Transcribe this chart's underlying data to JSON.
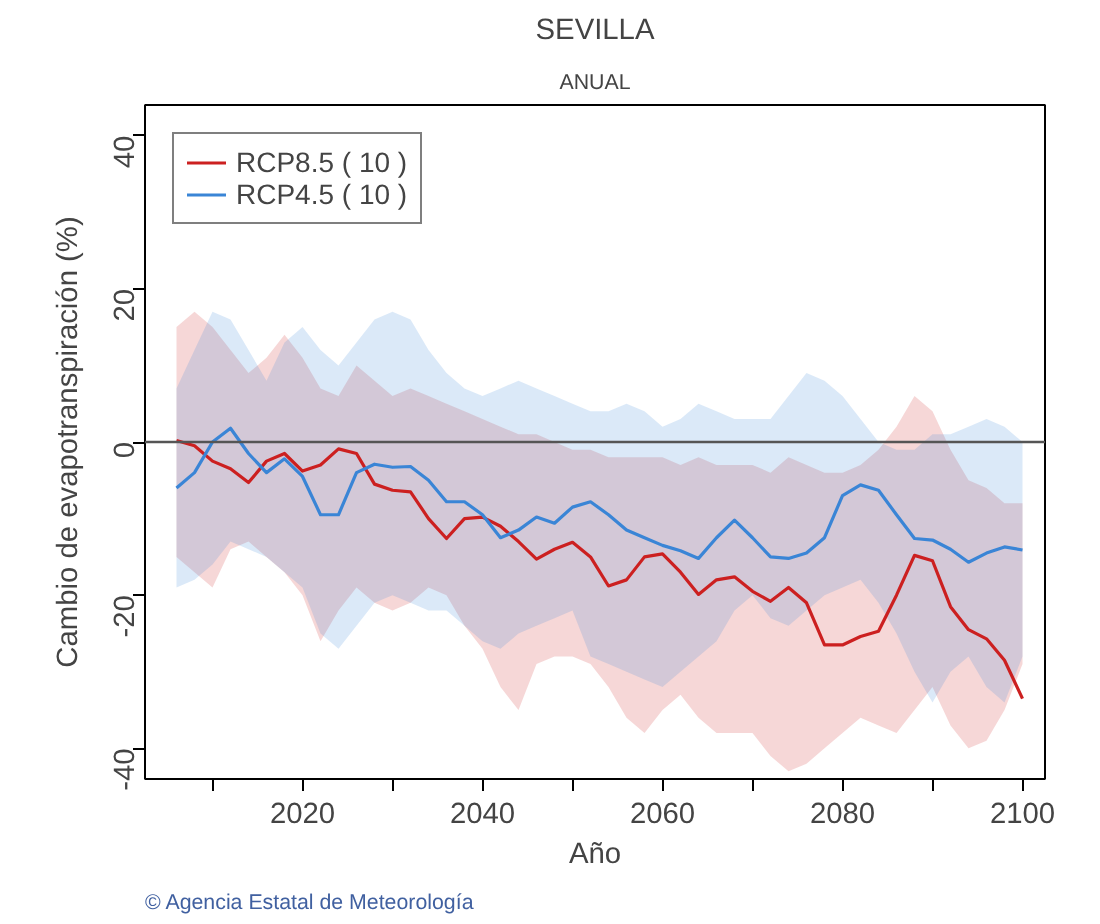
{
  "chart_data": {
    "type": "line",
    "title": "SEVILLA",
    "subtitle": "ANUAL",
    "xlabel": "Año",
    "ylabel": "Cambio de evapotranspiración (%)",
    "annotations": [
      "© Agencia Estatal de Meteorología"
    ],
    "x": [
      2006,
      2008,
      2010,
      2012,
      2014,
      2016,
      2018,
      2020,
      2022,
      2024,
      2026,
      2028,
      2030,
      2032,
      2034,
      2036,
      2038,
      2040,
      2042,
      2044,
      2046,
      2048,
      2050,
      2052,
      2054,
      2056,
      2058,
      2060,
      2062,
      2064,
      2066,
      2068,
      2070,
      2072,
      2074,
      2076,
      2078,
      2080,
      2082,
      2084,
      2086,
      2088,
      2090,
      2092,
      2094,
      2096,
      2098,
      2100
    ],
    "series": [
      {
        "name": "RCP8.5 ( 10 )",
        "color": "#cc2020",
        "values": [
          0.2,
          -0.5,
          -2.5,
          -3.5,
          -5.3,
          -2.5,
          -1.5,
          -3.8,
          -3,
          -0.9,
          -1.5,
          -5.5,
          -6.3,
          -6.5,
          -10,
          -12.6,
          -10,
          -9.8,
          -11,
          -13,
          -15.3,
          -14,
          -13.1,
          -15,
          -18.8,
          -18,
          -15,
          -14.6,
          -17,
          -19.9,
          -18,
          -17.6,
          -19.5,
          -20.8,
          -19,
          -21,
          -26.5,
          -26.5,
          -25.4,
          -24.7,
          -20,
          -14.8,
          -15.5,
          -21.5,
          -24.5,
          -25.7,
          -28.5,
          -33.5
        ],
        "upper": [
          15,
          17,
          15,
          12,
          9,
          11,
          14,
          11,
          7,
          6,
          10,
          8,
          6,
          7,
          6,
          5,
          4,
          3,
          2,
          1,
          1,
          0,
          -1,
          -1,
          -2,
          -2,
          -2,
          -2,
          -3,
          -2,
          -3,
          -3,
          -3,
          -4,
          -2,
          -3,
          -4,
          -4,
          -3,
          -1,
          2,
          6,
          4,
          -1,
          -5,
          -6,
          -8,
          -8
        ],
        "lower": [
          -15,
          -17,
          -19,
          -14,
          -13,
          -15,
          -17,
          -20,
          -26,
          -22,
          -19,
          -21,
          -22,
          -21,
          -19,
          -20,
          -24,
          -27,
          -32,
          -35,
          -29,
          -28,
          -28,
          -29,
          -32,
          -36,
          -38,
          -35,
          -33,
          -36,
          -38,
          -38,
          -38,
          -41,
          -43,
          -42,
          -40,
          -38,
          -36,
          -37,
          -38,
          -35,
          -32,
          -37,
          -40,
          -39,
          -35,
          -29
        ]
      },
      {
        "name": "RCP4.5 ( 10 )",
        "color": "#3a85d6",
        "values": [
          -6,
          -4,
          0,
          1.8,
          -1.5,
          -4,
          -2.2,
          -4.5,
          -9.5,
          -9.5,
          -4,
          -2.9,
          -3.3,
          -3.2,
          -5,
          -7.8,
          -7.8,
          -9.5,
          -12.5,
          -11.5,
          -9.8,
          -10.6,
          -8.5,
          -7.8,
          -9.5,
          -11.5,
          -12.5,
          -13.5,
          -14.2,
          -15.2,
          -12.5,
          -10.2,
          -12.5,
          -15,
          -15.2,
          -14.5,
          -12.5,
          -7,
          -5.6,
          -6.3,
          -9.5,
          -12.6,
          -12.8,
          -14,
          -15.7,
          -14.5,
          -13.7,
          -14.1
        ],
        "upper": [
          7,
          12,
          17,
          16,
          12,
          8,
          13,
          15,
          12,
          10,
          13,
          16,
          17,
          16,
          12,
          9,
          7,
          6,
          7,
          8,
          7,
          6,
          5,
          4,
          4,
          5,
          4,
          2,
          3,
          5,
          4,
          3,
          3,
          3,
          6,
          9,
          8,
          6,
          3,
          0,
          -1,
          -1,
          1,
          1,
          2,
          3,
          2,
          0
        ],
        "lower": [
          -19,
          -18,
          -16,
          -13,
          -14,
          -15,
          -17,
          -19,
          -25,
          -27,
          -24,
          -21,
          -20,
          -21,
          -22,
          -22,
          -24,
          -26,
          -27,
          -25,
          -24,
          -23,
          -22,
          -28,
          -29,
          -30,
          -31,
          -32,
          -30,
          -28,
          -26,
          -22,
          -20,
          -23,
          -24,
          -22,
          -20,
          -19,
          -18,
          -21,
          -25,
          -30,
          -34,
          -30,
          -28,
          -32,
          -34,
          -28
        ]
      }
    ],
    "xlim": [
      2002.5,
      2102.5
    ],
    "ylim": [
      -44,
      44
    ],
    "xticks": [
      {
        "value": 2010,
        "label": null
      },
      2020,
      {
        "value": 2030,
        "label": null
      },
      2040,
      {
        "value": 2050,
        "label": null
      },
      2060,
      {
        "value": 2070,
        "label": null
      },
      2080,
      {
        "value": 2090,
        "label": null
      },
      2100
    ],
    "yticks": [
      -40,
      -20,
      0,
      20,
      40
    ],
    "ref_lines": [
      {
        "axis": "y",
        "value": 0,
        "color": "#555555"
      }
    ],
    "grid": false,
    "legend": "top left",
    "marker": "none",
    "line_style": "solid"
  }
}
